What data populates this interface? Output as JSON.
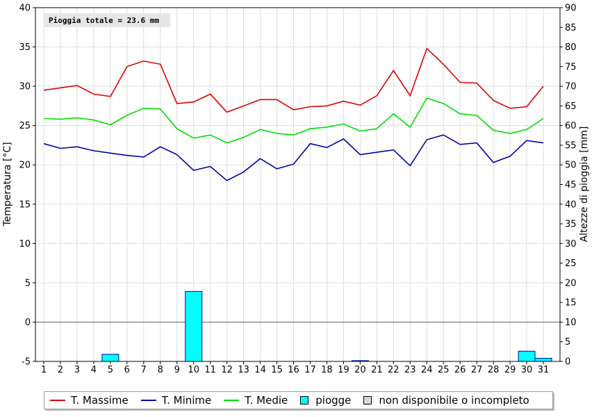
{
  "chart_data": {
    "type": "bar+line",
    "annotation": "Pioggia totale = 23.6 mm",
    "ylabel_left": "Temperatura [°C]",
    "ylabel_right": "Altezze di pioggia [mm]",
    "ylim_left": [
      -5,
      40
    ],
    "ylim_right": [
      0,
      90
    ],
    "yticks_left": [
      "-5",
      "0",
      "5",
      "10",
      "15",
      "20",
      "25",
      "30",
      "35",
      "40"
    ],
    "yticks_right": [
      "0",
      "5",
      "10",
      "15",
      "20",
      "25",
      "30",
      "35",
      "40",
      "45",
      "50",
      "55",
      "60",
      "65",
      "70",
      "75",
      "80",
      "85",
      "90"
    ],
    "x": [
      "1",
      "2",
      "3",
      "4",
      "5",
      "6",
      "7",
      "8",
      "9",
      "10",
      "11",
      "12",
      "13",
      "14",
      "15",
      "16",
      "17",
      "18",
      "19",
      "20",
      "21",
      "22",
      "23",
      "24",
      "25",
      "26",
      "27",
      "28",
      "29",
      "30",
      "31"
    ],
    "grid": true,
    "series": [
      {
        "name": "T. Massime",
        "color": "#dd0000",
        "axis": "left",
        "values": [
          29.5,
          29.8,
          30.1,
          29.0,
          28.7,
          32.5,
          33.2,
          32.8,
          27.8,
          28.0,
          29.0,
          26.7,
          27.5,
          28.3,
          28.3,
          27.0,
          27.4,
          27.5,
          28.1,
          27.6,
          28.8,
          32.0,
          28.8,
          34.8,
          32.8,
          30.5,
          30.4,
          28.2,
          27.2,
          27.4,
          30.0
        ]
      },
      {
        "name": "T. Minime",
        "color": "#0000aa",
        "axis": "left",
        "values": [
          22.7,
          22.1,
          22.3,
          21.8,
          21.5,
          21.2,
          21.0,
          22.3,
          21.3,
          19.3,
          19.8,
          18.0,
          19.1,
          20.8,
          19.5,
          20.1,
          22.7,
          22.2,
          23.3,
          21.3,
          21.6,
          21.9,
          19.9,
          23.2,
          23.8,
          22.6,
          22.8,
          20.3,
          21.1,
          23.1,
          22.8
        ]
      },
      {
        "name": "T. Medie",
        "color": "#00dd00",
        "axis": "left",
        "values": [
          25.9,
          25.8,
          26.0,
          25.7,
          25.1,
          26.3,
          27.2,
          27.1,
          24.6,
          23.4,
          23.8,
          22.8,
          23.5,
          24.5,
          24.0,
          23.8,
          24.6,
          24.8,
          25.2,
          24.3,
          24.6,
          26.5,
          24.8,
          28.5,
          27.8,
          26.5,
          26.3,
          24.4,
          24.0,
          24.5,
          25.9
        ]
      },
      {
        "name": "piogge",
        "color": "#00ffff",
        "axis": "right",
        "type": "bar",
        "values": [
          0,
          0,
          0,
          0,
          1.8,
          0,
          0,
          0,
          0,
          17.8,
          0,
          0,
          0,
          0,
          0,
          0,
          0,
          0,
          0,
          0.2,
          0,
          0,
          0,
          0,
          0,
          0,
          0,
          0,
          0,
          2.6,
          0.8
        ]
      }
    ],
    "legend": [
      {
        "name": "T. Massime",
        "kind": "line",
        "color": "#dd0000"
      },
      {
        "name": "T. Minime",
        "kind": "line",
        "color": "#0000aa"
      },
      {
        "name": "T. Medie",
        "kind": "line",
        "color": "#00dd00"
      },
      {
        "name": "piogge",
        "kind": "box",
        "color": "#00ffff"
      },
      {
        "name": "non disponibile o incompleto",
        "kind": "box",
        "color": "#d8d8d8"
      }
    ]
  }
}
